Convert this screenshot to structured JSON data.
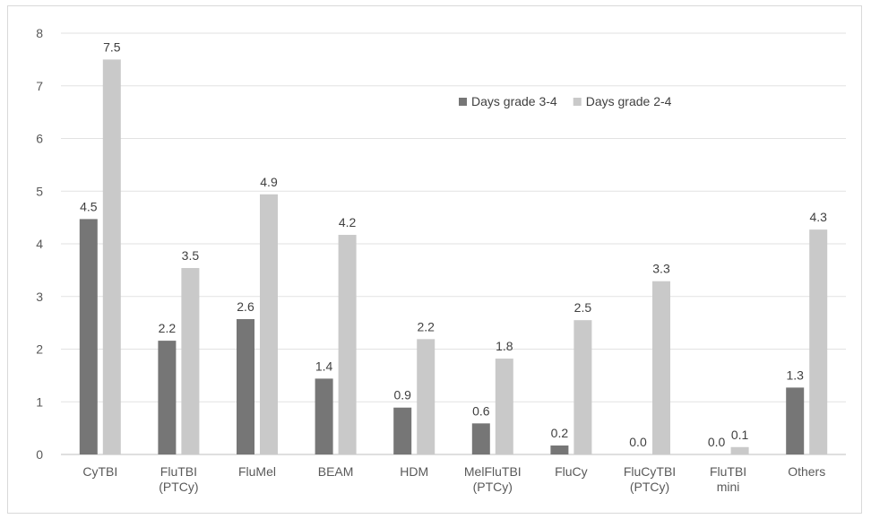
{
  "chart_data": {
    "type": "bar",
    "categories": [
      "CyTBI",
      "FluTBI\n(PTCy)",
      "FluMel",
      "BEAM",
      "HDM",
      "MelFluTBI\n(PTCy)",
      "FluCy",
      "FluCyTBI\n(PTCy)",
      "FluTBI\nmini",
      "Others"
    ],
    "series": [
      {
        "name": "Days grade 3-4",
        "color": "#767676",
        "values": [
          4.47,
          2.16,
          2.57,
          1.44,
          0.89,
          0.59,
          0.17,
          0.0,
          0.0,
          1.27
        ],
        "labels": [
          "4.5",
          "2.2",
          "2.6",
          "1.4",
          "0.9",
          "0.6",
          "0.2",
          "0.0",
          "0.0",
          "1.3"
        ]
      },
      {
        "name": "Days grade 2-4",
        "color": "#c9c9c9",
        "values": [
          7.5,
          3.54,
          4.94,
          4.17,
          2.19,
          1.82,
          2.55,
          3.29,
          0.14,
          4.27
        ],
        "labels": [
          "7.5",
          "3.5",
          "4.9",
          "4.2",
          "2.2",
          "1.8",
          "2.5",
          "3.3",
          "0.1",
          "4.3"
        ]
      }
    ],
    "yticks": [
      "0",
      "1",
      "2",
      "3",
      "4",
      "5",
      "6",
      "7",
      "8"
    ],
    "ylim": [
      0,
      8
    ],
    "grid": true,
    "legend_position": "top-center"
  }
}
